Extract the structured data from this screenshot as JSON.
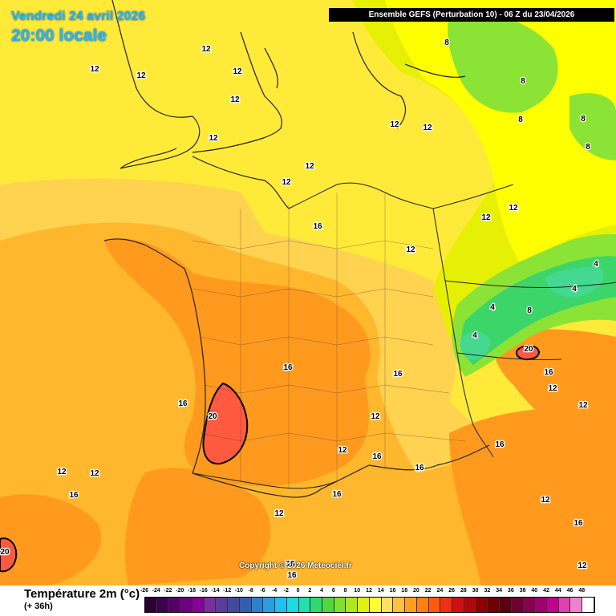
{
  "header": {
    "date_label": "Vendredi 24 avril 2026",
    "time_label": "20:00 locale",
    "model_label": "Ensemble GEFS  (Perturbation 10)  -  06 Z du 23/04/2026"
  },
  "footer": {
    "copyright": "Copyright © 2026 Meteociel.fr"
  },
  "legend": {
    "title": "Température 2m (°c)",
    "subtitle": "(+ 36h)",
    "scale": [
      {
        "value": "-26",
        "color": "#2a0033"
      },
      {
        "value": "-24",
        "color": "#3d004d"
      },
      {
        "value": "-22",
        "color": "#550066"
      },
      {
        "value": "-20",
        "color": "#6e0080"
      },
      {
        "value": "-18",
        "color": "#880099"
      },
      {
        "value": "-16",
        "color": "#7a2f9e"
      },
      {
        "value": "-14",
        "color": "#5b3c9a"
      },
      {
        "value": "-12",
        "color": "#3f4aa0"
      },
      {
        "value": "-10",
        "color": "#2f5fb5"
      },
      {
        "value": "-8",
        "color": "#2f7fcc"
      },
      {
        "value": "-6",
        "color": "#2a9fe0"
      },
      {
        "value": "-4",
        "color": "#22c0f0"
      },
      {
        "value": "-2",
        "color": "#20d8e0"
      },
      {
        "value": "0",
        "color": "#20e0b0"
      },
      {
        "value": "2",
        "color": "#30d870"
      },
      {
        "value": "4",
        "color": "#50d840"
      },
      {
        "value": "6",
        "color": "#80e030"
      },
      {
        "value": "8",
        "color": "#b0e820"
      },
      {
        "value": "10",
        "color": "#e0f010"
      },
      {
        "value": "12",
        "color": "#ffff30"
      },
      {
        "value": "14",
        "color": "#ffe060"
      },
      {
        "value": "16",
        "color": "#ffc040"
      },
      {
        "value": "18",
        "color": "#ffa020"
      },
      {
        "value": "20",
        "color": "#ff8010"
      },
      {
        "value": "22",
        "color": "#ff5a10"
      },
      {
        "value": "24",
        "color": "#f03010"
      },
      {
        "value": "26",
        "color": "#d01010"
      },
      {
        "value": "28",
        "color": "#b00808"
      },
      {
        "value": "30",
        "color": "#900000"
      },
      {
        "value": "32",
        "color": "#700000"
      },
      {
        "value": "34",
        "color": "#5a0010"
      },
      {
        "value": "36",
        "color": "#700030"
      },
      {
        "value": "38",
        "color": "#880050"
      },
      {
        "value": "40",
        "color": "#a00070"
      },
      {
        "value": "42",
        "color": "#c00090"
      },
      {
        "value": "44",
        "color": "#e040b0"
      },
      {
        "value": "46",
        "color": "#f080d0"
      },
      {
        "value": "48",
        "color": "#ffffff"
      }
    ]
  },
  "map": {
    "colors": {
      "t8": "#ffff00",
      "t10": "#e6f005",
      "t12": "#ffea3a",
      "t14": "#ffd250",
      "t16": "#ffb72d",
      "t18": "#ff9a1e",
      "t20": "#ff5a40",
      "t6": "#8be336",
      "t4": "#3bd56a",
      "t2": "#44d890",
      "border": "#222222"
    },
    "isotherm_labels": [
      "12",
      "12",
      "12",
      "12",
      "12",
      "12",
      "12",
      "12",
      "12",
      "12",
      "8",
      "8",
      "8",
      "8",
      "8",
      "12",
      "12",
      "12",
      "12",
      "16",
      "12",
      "4",
      "4",
      "4",
      "4",
      "8",
      "20",
      "16",
      "16",
      "12",
      "12",
      "16",
      "20",
      "16",
      "12",
      "12",
      "16",
      "16",
      "16",
      "16",
      "12",
      "12",
      "16",
      "12",
      "12",
      "16",
      "16",
      "20",
      "16",
      "12",
      "12"
    ]
  }
}
